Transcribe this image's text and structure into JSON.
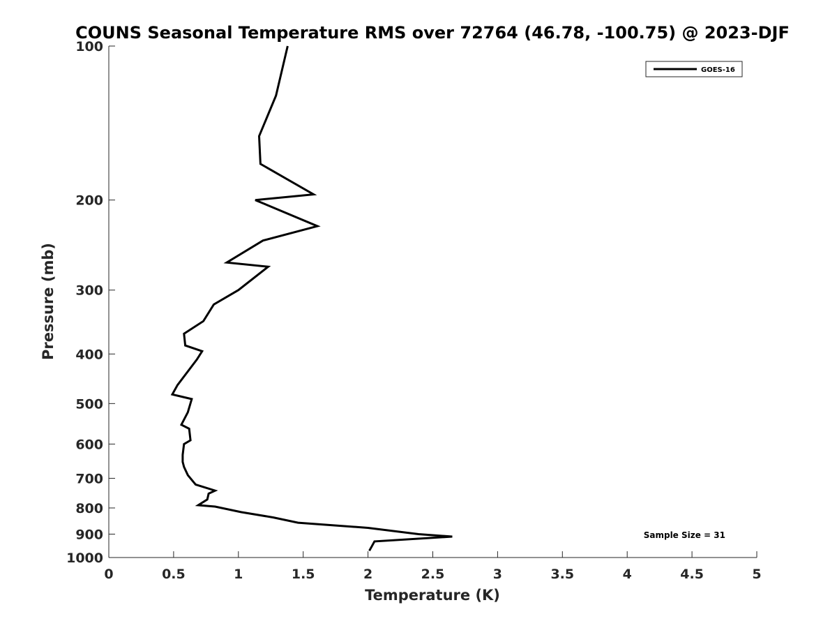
{
  "chart_data": {
    "type": "line",
    "title": "COUNS Seasonal Temperature RMS over 72764 (46.78, -100.75) @ 2023-DJF",
    "xlabel": "Temperature (K)",
    "ylabel": "Pressure (mb)",
    "xlim": [
      0,
      5
    ],
    "ylim": [
      100,
      1000
    ],
    "y_scale": "log",
    "y_reversed": true,
    "grid": false,
    "xticks": [
      0,
      0.5,
      1,
      1.5,
      2,
      2.5,
      3,
      3.5,
      4,
      4.5,
      5
    ],
    "xtick_labels": [
      "0",
      "0.5",
      "1",
      "1.5",
      "2",
      "2.5",
      "3",
      "3.5",
      "4",
      "4.5",
      "5"
    ],
    "yticks": [
      100,
      200,
      300,
      400,
      500,
      600,
      700,
      800,
      900,
      1000
    ],
    "ytick_labels": [
      "100",
      "200",
      "300",
      "400",
      "500",
      "600",
      "700",
      "800",
      "900",
      "1000"
    ],
    "legend_position": "top-right",
    "series": [
      {
        "name": "GOES-16",
        "color": "#000000",
        "x": [
          1.38,
          1.29,
          1.16,
          1.17,
          1.58,
          1.13,
          1.61,
          1.19,
          0.91,
          1.23,
          1.0,
          0.81,
          0.73,
          0.58,
          0.59,
          0.72,
          0.68,
          0.53,
          0.49,
          0.64,
          0.61,
          0.56,
          0.62,
          0.63,
          0.58,
          0.57,
          0.57,
          0.58,
          0.61,
          0.67,
          0.82,
          0.77,
          0.76,
          0.69,
          0.82,
          1.02,
          1.27,
          1.46,
          2.0,
          2.39,
          2.65,
          2.05,
          2.03,
          2.01
        ],
        "y": [
          100,
          125,
          150,
          170,
          195,
          200,
          225,
          240,
          265,
          270,
          300,
          320,
          345,
          365,
          385,
          395,
          410,
          460,
          480,
          490,
          520,
          550,
          560,
          590,
          600,
          630,
          650,
          665,
          690,
          720,
          740,
          750,
          770,
          790,
          795,
          815,
          835,
          855,
          875,
          900,
          910,
          930,
          950,
          970
        ]
      }
    ],
    "annotation": "Sample Size = 31"
  }
}
